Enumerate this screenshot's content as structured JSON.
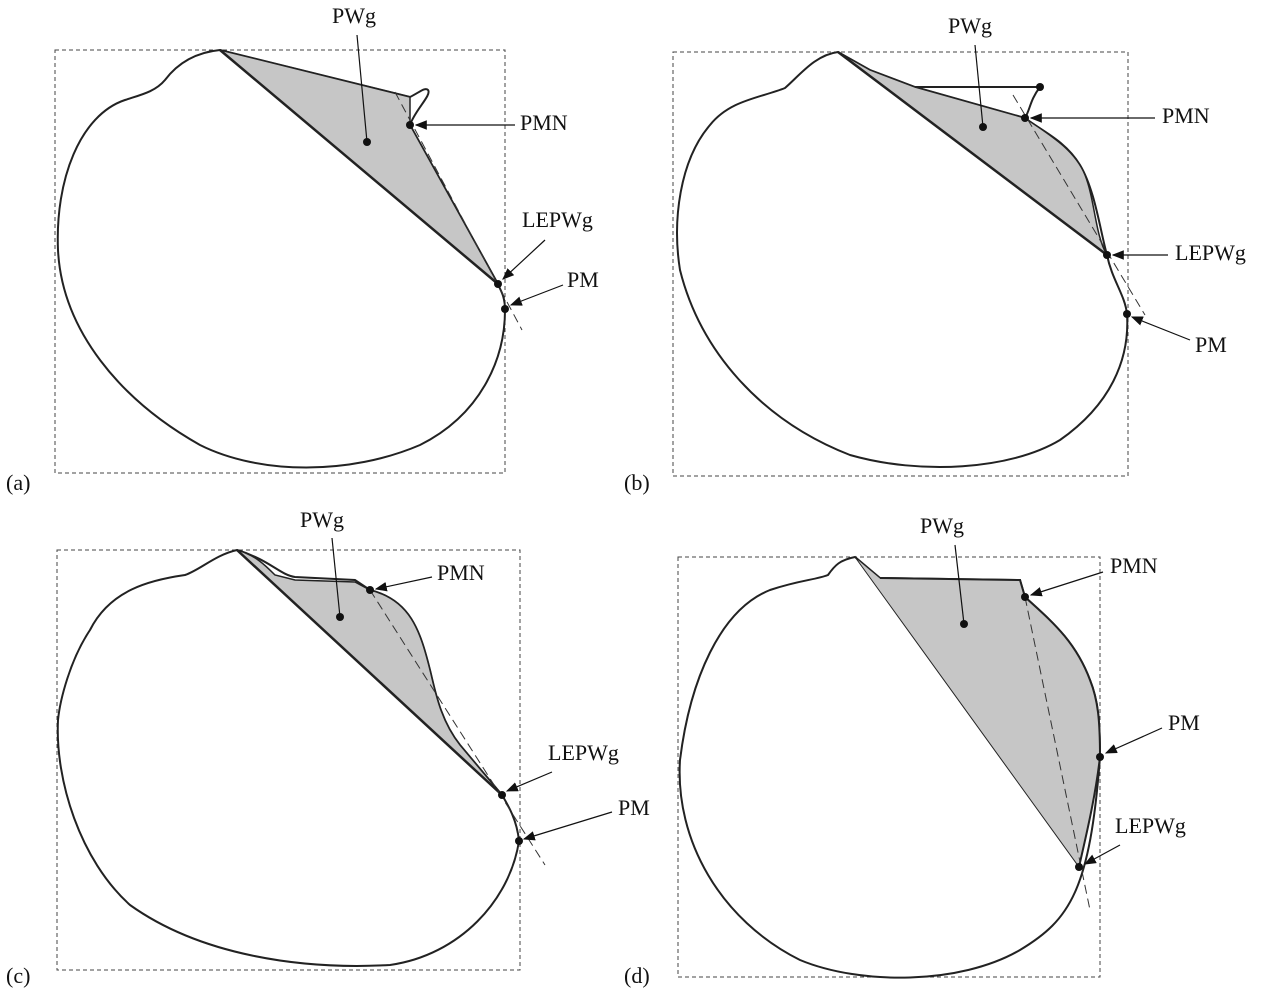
{
  "panels": [
    {
      "label": "(a)",
      "pwg": "PWg",
      "pmn": "PMN",
      "lepwg": "LEPWg",
      "pm": "PM"
    },
    {
      "label": "(b)",
      "pwg": "PWg",
      "pmn": "PMN",
      "lepwg": "LEPWg",
      "pm": "PM"
    },
    {
      "label": "(c)",
      "pwg": "PWg",
      "pmn": "PMN",
      "lepwg": "LEPWg",
      "pm": "PM"
    },
    {
      "label": "(d)",
      "pwg": "PWg",
      "pmn": "PMN",
      "lepwg": "LEPWg",
      "pm": "PM"
    }
  ]
}
